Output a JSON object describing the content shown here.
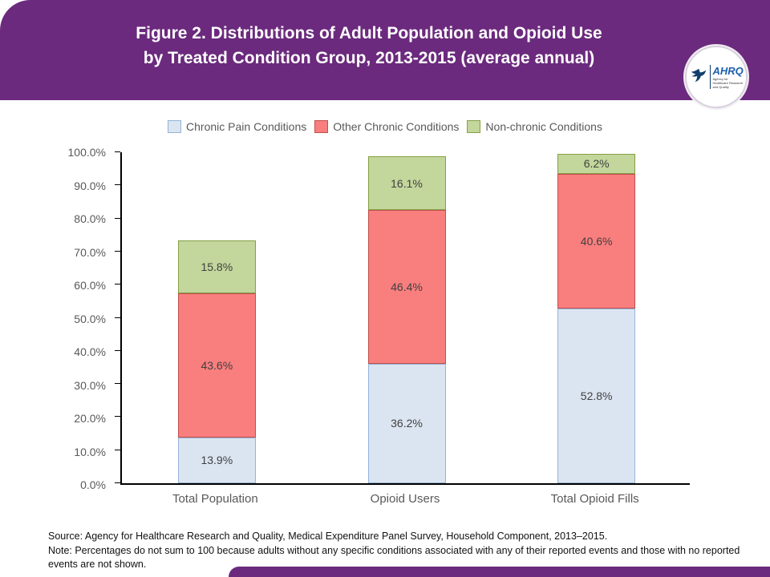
{
  "header": {
    "title_line1": "Figure 2. Distributions of Adult Population and Opioid Use",
    "title_line2": "by Treated Condition Group, 2013-2015 (average annual)",
    "logo": {
      "acronym": "AHRQ",
      "tagline": "Agency for Healthcare Research and Quality"
    }
  },
  "legend": [
    {
      "label": "Chronic Pain Conditions",
      "color": "#dbe5f1",
      "border": "#95b3d7"
    },
    {
      "label": "Other Chronic Conditions",
      "color": "#f97e7e",
      "border": "#c0504d"
    },
    {
      "label": "Non-chronic Conditions",
      "color": "#c3d69b",
      "border": "#85a045"
    }
  ],
  "chart_data": {
    "type": "bar",
    "stacked": true,
    "title": "Figure 2. Distributions of Adult Population and Opioid Use by Treated Condition Group, 2013-2015 (average annual)",
    "categories": [
      "Total Population",
      "Opioid Users",
      "Total Opioid Fills"
    ],
    "series": [
      {
        "name": "Chronic Pain Conditions",
        "values": [
          13.9,
          36.2,
          52.8
        ]
      },
      {
        "name": "Other Chronic Conditions",
        "values": [
          43.6,
          46.4,
          40.6
        ]
      },
      {
        "name": "Non-chronic Conditions",
        "values": [
          15.8,
          16.1,
          6.2
        ]
      }
    ],
    "xlabel": "",
    "ylabel": "",
    "ylim": [
      0,
      100
    ],
    "ytick_step": 10,
    "ytick_labels": [
      "0.0%",
      "10.0%",
      "20.0%",
      "30.0%",
      "40.0%",
      "50.0%",
      "60.0%",
      "70.0%",
      "80.0%",
      "90.0%",
      "100.0%"
    ],
    "grid": false,
    "legend_position": "top"
  },
  "footer": {
    "source": "Source: Agency for Healthcare Research and Quality, Medical Expenditure Panel Survey, Household Component, 2013–2015.",
    "note": "Note: Percentages do not sum to 100 because adults without any specific conditions associated with any of their reported events and those with no reported events are not shown."
  },
  "colors": {
    "header_purple": "#6b2a7d",
    "series": [
      "#dbe5f1",
      "#f97e7e",
      "#c3d69b"
    ],
    "series_borders": [
      "#95b3d7",
      "#c0504d",
      "#85a045"
    ],
    "label_text": "#404040",
    "axis_text": "#595959"
  }
}
